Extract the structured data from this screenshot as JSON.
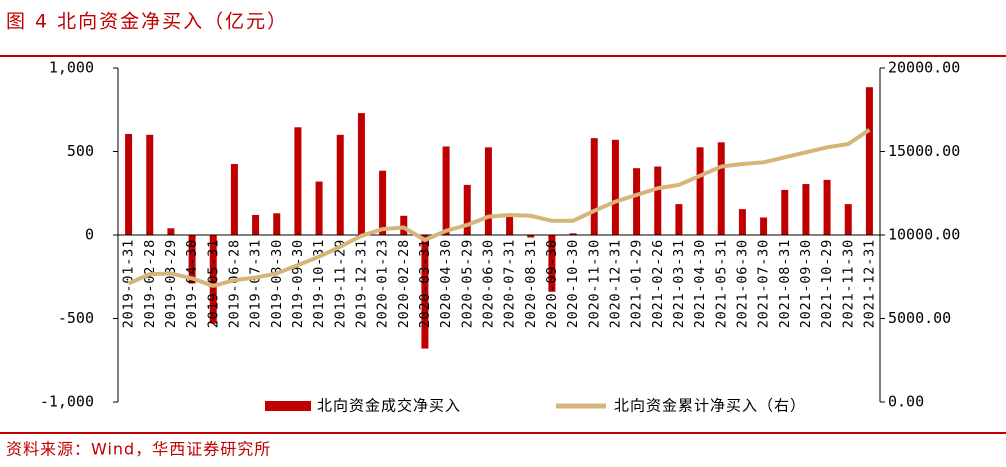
{
  "chart_data": {
    "type": "combo",
    "title": "图 4 北向资金净买入（亿元）",
    "source": "资料来源：Wind，华西证券研究所",
    "categories": [
      "2019-01-31",
      "2019-02-28",
      "2019-03-29",
      "2019-04-30",
      "2019-05-31",
      "2019-06-28",
      "2019-07-31",
      "2019-08-30",
      "2019-09-30",
      "2019-10-31",
      "2019-11-29",
      "2019-12-31",
      "2020-01-23",
      "2020-02-28",
      "2020-03-31",
      "2020-04-30",
      "2020-05-29",
      "2020-06-30",
      "2020-07-31",
      "2020-08-31",
      "2020-09-30",
      "2020-10-30",
      "2020-11-30",
      "2020-12-31",
      "2021-01-29",
      "2021-02-26",
      "2021-03-31",
      "2021-04-30",
      "2021-05-31",
      "2021-06-30",
      "2021-07-30",
      "2021-08-31",
      "2021-09-30",
      "2021-10-29",
      "2021-11-30",
      "2021-12-31"
    ],
    "series": [
      {
        "name": "北向资金成交净买入",
        "type": "bar",
        "color": "#c00000",
        "values": [
          605,
          600,
          40,
          -290,
          -530,
          425,
          120,
          130,
          645,
          320,
          600,
          730,
          385,
          115,
          -680,
          530,
          300,
          525,
          110,
          -15,
          -340,
          10,
          580,
          570,
          400,
          410,
          185,
          525,
          555,
          155,
          105,
          270,
          305,
          330,
          185,
          885
        ]
      },
      {
        "name": "北向资金累计净买入（右）",
        "type": "line",
        "axis": "y2",
        "color": "#d6b47a",
        "values": [
          7100,
          7650,
          7700,
          7400,
          6950,
          7300,
          7450,
          7700,
          8200,
          8700,
          9300,
          9950,
          10350,
          10450,
          9700,
          10250,
          10600,
          11100,
          11200,
          11150,
          10850,
          10850,
          11450,
          12000,
          12400,
          12800,
          13000,
          13550,
          14100,
          14250,
          14350,
          14650,
          14950,
          15250,
          15450,
          16300
        ]
      }
    ],
    "ylim": [
      -1000,
      1000
    ],
    "yticks": [
      {
        "value": -1000,
        "label": "-1,000"
      },
      -500,
      0,
      500,
      {
        "value": 1000,
        "label": "1,000"
      }
    ],
    "y2lim": [
      0,
      20000
    ],
    "y2ticks": [
      {
        "value": 0,
        "label": "0.00"
      },
      {
        "value": 5000,
        "label": "5000.00"
      },
      {
        "value": 10000,
        "label": "10000.00"
      },
      {
        "value": 15000,
        "label": "15000.00"
      },
      {
        "value": 20000,
        "label": "20000.00"
      }
    ]
  }
}
